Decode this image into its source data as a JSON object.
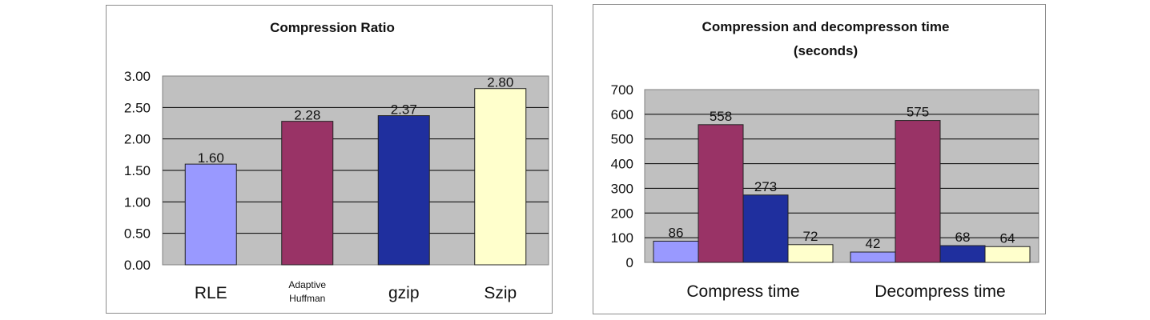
{
  "chart_data": [
    {
      "type": "bar",
      "title": "Compression Ratio",
      "categories": [
        "RLE",
        "Adaptive Huffman",
        "gzip",
        "Szip"
      ],
      "category_lines": [
        [
          "RLE"
        ],
        [
          "Adaptive",
          "Huffman"
        ],
        [
          "gzip"
        ],
        [
          "Szip"
        ]
      ],
      "values": [
        1.6,
        2.28,
        2.37,
        2.8
      ],
      "data_labels": [
        "1.60",
        "2.28",
        "2.37",
        "2.80"
      ],
      "bar_colors": [
        "#9999ff",
        "#993366",
        "#1f2f9e",
        "#ffffcc"
      ],
      "yticks": [
        "0.00",
        "0.50",
        "1.00",
        "1.50",
        "2.00",
        "2.50",
        "3.00"
      ],
      "ylim": [
        0,
        3
      ],
      "grid": true,
      "plot_background": "#c0c0c0"
    },
    {
      "type": "bar",
      "title_lines": [
        "Compression and decompresson time",
        "(seconds)"
      ],
      "categories": [
        "Compress time",
        "Decompress time"
      ],
      "series": [
        {
          "values": [
            86,
            42
          ],
          "color": "#9999ff"
        },
        {
          "values": [
            558,
            575
          ],
          "color": "#993366"
        },
        {
          "values": [
            273,
            68
          ],
          "color": "#1f2f9e"
        },
        {
          "values": [
            72,
            64
          ],
          "color": "#ffffcc"
        }
      ],
      "yticks": [
        "0",
        "100",
        "200",
        "300",
        "400",
        "500",
        "600",
        "700"
      ],
      "ylim": [
        0,
        700
      ],
      "grid": true,
      "plot_background": "#c0c0c0"
    }
  ]
}
